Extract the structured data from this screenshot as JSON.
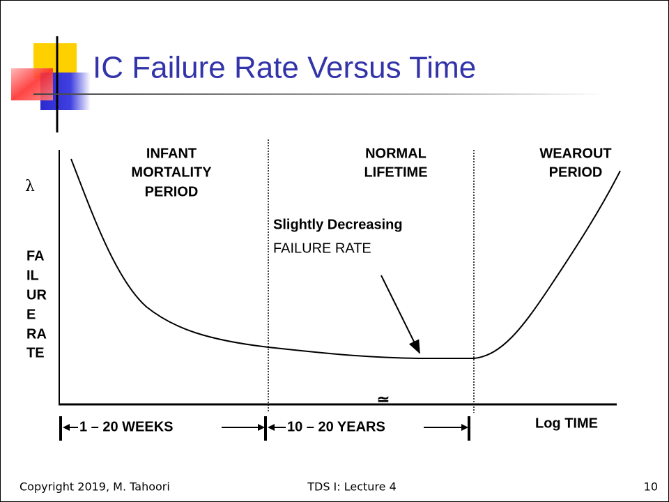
{
  "title": "IC Failure Rate Versus Time",
  "regions": [
    {
      "lines": [
        "INFANT",
        "MORTALITY",
        "PERIOD"
      ]
    },
    {
      "lines": [
        "NORMAL",
        "LIFETIME"
      ]
    },
    {
      "lines": [
        "WEAROUT",
        "PERIOD"
      ]
    }
  ],
  "annotation": [
    "Slightly Decreasing",
    "FAILURE RATE"
  ],
  "y_symbol": "λ",
  "y_label": [
    "FA",
    "IL",
    "UR",
    "E",
    "RA",
    "TE"
  ],
  "approx_mark": "≃",
  "time_ranges": [
    "1 – 20 WEEKS",
    "10 – 20 YEARS"
  ],
  "x_label": "Log TIME",
  "footer": {
    "left": "Copyright 2019, M. Tahoori",
    "center": "TDS I: Lecture 4",
    "right": "10"
  }
}
